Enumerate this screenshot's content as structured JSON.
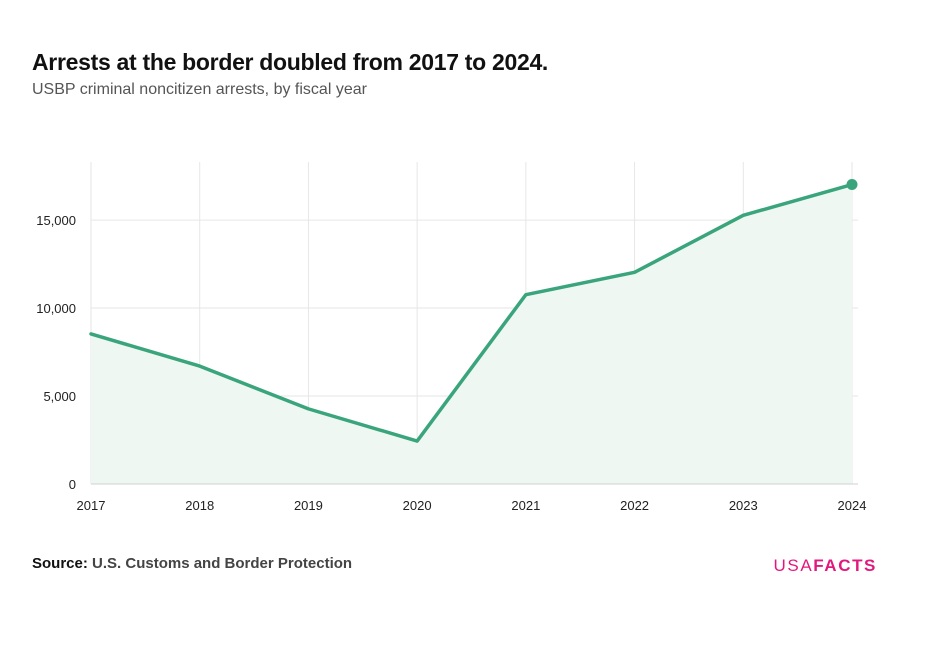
{
  "header": {
    "title": "Arrests at the border doubled from 2017 to 2024.",
    "subtitle": "USBP criminal noncitizen arrests, by fiscal year"
  },
  "footer": {
    "source_label": "Source:",
    "source_text": "U.S. Customs and Border Protection",
    "logo_light": "USA",
    "logo_bold": "FACTS"
  },
  "colors": {
    "line": "#3aa57c",
    "area": "#eef7f2",
    "grid": "#e6e6e6",
    "logo": "#e3187d"
  },
  "chart_data": {
    "type": "line",
    "title": "Arrests at the border doubled from 2017 to 2024.",
    "subtitle": "USBP criminal noncitizen arrests, by fiscal year",
    "xlabel": "",
    "ylabel": "",
    "categories": [
      "2017",
      "2018",
      "2019",
      "2020",
      "2021",
      "2022",
      "2023",
      "2024"
    ],
    "series": [
      {
        "values": [
          8530,
          6700,
          4270,
          2440,
          10760,
          12030,
          15270,
          17020
        ]
      }
    ],
    "ylim": [
      0,
      18300
    ],
    "yticks": [
      0,
      5000,
      10000,
      15000
    ],
    "ytick_labels": [
      "0",
      "5,000",
      "10,000",
      "15,000"
    ],
    "grid": true,
    "area_fill": true,
    "end_marker": true,
    "legend": "none"
  }
}
